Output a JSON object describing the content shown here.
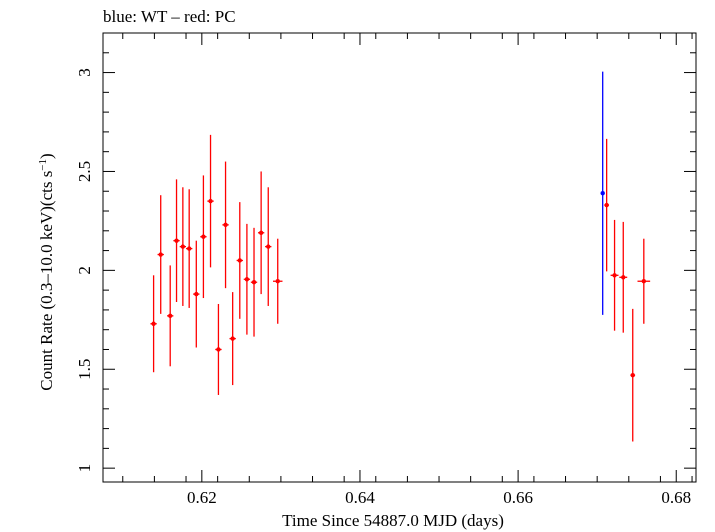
{
  "chart_data": {
    "type": "scatter",
    "title": "blue: WT – red: PC",
    "xlabel": "Time Since 54887.0 MJD (days)",
    "ylabel_main": "Count Rate (0.3–10.0 keV)(cts s",
    "ylabel_sup": "−1",
    "ylabel_end": ")",
    "xlim": [
      0.6075,
      0.6825
    ],
    "ylim": [
      0.93,
      3.2
    ],
    "x_ticks": [
      0.62,
      0.64,
      0.66,
      0.68
    ],
    "x_tick_labels": [
      "0.62",
      "0.64",
      "0.66",
      "0.68"
    ],
    "y_ticks": [
      1,
      1.5,
      2,
      2.5,
      3
    ],
    "y_tick_labels": [
      "1",
      "1.5",
      "2",
      "2.5",
      "3"
    ],
    "grid": false,
    "series": [
      {
        "color": "#ff0000",
        "points": [
          {
            "x": 0.6139,
            "xerr": 0.0004,
            "y": 1.73,
            "yerr": 0.245
          },
          {
            "x": 0.6148,
            "xerr": 0.0004,
            "y": 2.08,
            "yerr": 0.3
          },
          {
            "x": 0.616,
            "xerr": 0.0004,
            "y": 1.77,
            "yerr": 0.255
          },
          {
            "x": 0.6168,
            "xerr": 0.0004,
            "y": 2.15,
            "yerr": 0.31
          },
          {
            "x": 0.6176,
            "xerr": 0.0004,
            "y": 2.12,
            "yerr": 0.3
          },
          {
            "x": 0.6184,
            "xerr": 0.0004,
            "y": 2.11,
            "yerr": 0.3
          },
          {
            "x": 0.6193,
            "xerr": 0.0004,
            "y": 1.88,
            "yerr": 0.27
          },
          {
            "x": 0.6202,
            "xerr": 0.0004,
            "y": 2.17,
            "yerr": 0.31
          },
          {
            "x": 0.6211,
            "xerr": 0.0004,
            "y": 2.35,
            "yerr": 0.335
          },
          {
            "x": 0.6221,
            "xerr": 0.0004,
            "y": 1.6,
            "yerr": 0.23
          },
          {
            "x": 0.623,
            "xerr": 0.0004,
            "y": 2.23,
            "yerr": 0.32
          },
          {
            "x": 0.6239,
            "xerr": 0.0004,
            "y": 1.655,
            "yerr": 0.235
          },
          {
            "x": 0.6248,
            "xerr": 0.0004,
            "y": 2.05,
            "yerr": 0.295
          },
          {
            "x": 0.6257,
            "xerr": 0.0004,
            "y": 1.955,
            "yerr": 0.28
          },
          {
            "x": 0.6266,
            "xerr": 0.0004,
            "y": 1.94,
            "yerr": 0.275
          },
          {
            "x": 0.6275,
            "xerr": 0.0004,
            "y": 2.19,
            "yerr": 0.31
          },
          {
            "x": 0.6284,
            "xerr": 0.0004,
            "y": 2.12,
            "yerr": 0.3
          },
          {
            "x": 0.6296,
            "xerr": 0.0006,
            "y": 1.945,
            "yerr": 0.215
          },
          {
            "x": 0.6712,
            "xerr": 0.0003,
            "y": 2.33,
            "yerr": 0.335
          },
          {
            "x": 0.6722,
            "xerr": 0.0005,
            "y": 1.975,
            "yerr": 0.28
          },
          {
            "x": 0.6733,
            "xerr": 0.0005,
            "y": 1.965,
            "yerr": 0.28
          },
          {
            "x": 0.6745,
            "xerr": 0.0003,
            "y": 1.47,
            "yerr": 0.335
          },
          {
            "x": 0.6759,
            "xerr": 0.0008,
            "y": 1.945,
            "yerr": 0.215
          }
        ]
      },
      {
        "color": "#0000ff",
        "points": [
          {
            "x": 0.6707,
            "xerr": 0.0001,
            "y": 2.39,
            "yerr": 0.615
          }
        ]
      }
    ]
  }
}
